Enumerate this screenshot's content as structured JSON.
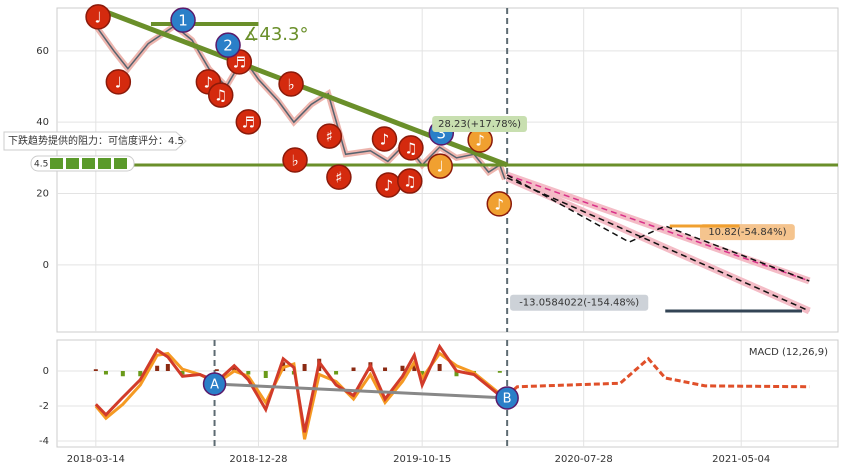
{
  "chart_data": [
    {
      "type": "line",
      "x": [
        "2018-03-14",
        "2018-04-15",
        "2018-05-10",
        "2018-06-15",
        "2018-08-01",
        "2018-09-01",
        "2018-10-01",
        "2018-11-01",
        "2018-12-01",
        "2018-12-28",
        "2019-02-01",
        "2019-03-01",
        "2019-04-01",
        "2019-05-01",
        "2019-06-01",
        "2019-07-15",
        "2019-08-15",
        "2019-09-15",
        "2019-10-15",
        "2019-11-15",
        "2019-12-15",
        "2020-01-15",
        "2020-02-10",
        "2020-03-01",
        "2020-03-10"
      ],
      "values": [
        67,
        60,
        55,
        62,
        67,
        63,
        55,
        50,
        58,
        52,
        46,
        40,
        45,
        48,
        31,
        32,
        29,
        34,
        28,
        33,
        30,
        31,
        26,
        28,
        24
      ],
      "color": "#56636f",
      "xlim": [
        "2018-01-04",
        "2021-10-23"
      ],
      "xticks": [
        "2018-03-14",
        "2018-12-28",
        "2019-10-15",
        "2020-07-28",
        "2021-05-04"
      ],
      "ylim": [
        -18.8,
        72
      ],
      "yticks": [
        0,
        20,
        40,
        60
      ],
      "grid": true,
      "vline": "2020-03-14",
      "trendlines": [
        {
          "color": "#6a8f2a",
          "width": 5,
          "points": [
            {
              "x": "2018-03-14",
              "y": 72
            },
            {
              "x": "2020-03-14",
              "y": 28
            }
          ]
        },
        {
          "color": "#6a8f2a",
          "width": 4,
          "points": [
            {
              "x": "2018-06-20",
              "y": 67.5
            },
            {
              "x": "2018-12-28",
              "y": 67.5
            }
          ]
        },
        {
          "color": "#6a8f2a",
          "width": 3,
          "points": [
            {
              "x": "2018-01-04",
              "y": 28
            },
            {
              "x": "2021-10-23",
              "y": 28
            }
          ]
        },
        {
          "color": "#f4bcc6",
          "width": 7,
          "points": [
            {
              "x": "2020-03-14",
              "y": 25.2
            },
            {
              "x": "2021-09-02",
              "y": -4.5
            }
          ]
        },
        {
          "color": "#f4bcc6",
          "width": 7,
          "points": [
            {
              "x": "2020-03-14",
              "y": 24.4
            },
            {
              "x": "2021-09-02",
              "y": -12.9
            }
          ]
        },
        {
          "color": "#d9308a",
          "width": 1.5,
          "dash": true,
          "points": [
            {
              "x": "2020-03-14",
              "y": 25.2
            },
            {
              "x": "2021-09-02",
              "y": -4.5
            }
          ]
        },
        {
          "color": "#111111",
          "width": 1.5,
          "dash": true,
          "points": [
            {
              "x": "2020-03-14",
              "y": 25.2
            },
            {
              "x": "2020-10-17",
              "y": 6.4
            },
            {
              "x": "2020-12-20",
              "y": 10.9
            },
            {
              "x": "2021-09-02",
              "y": -4.5
            }
          ]
        },
        {
          "color": "#111111",
          "width": 1.5,
          "dash": true,
          "points": [
            {
              "x": "2020-03-14",
              "y": 24.4
            },
            {
              "x": "2021-09-02",
              "y": -12.9
            }
          ]
        }
      ],
      "angle_label": {
        "text": "∡43.3°",
        "x": "2018-12-01",
        "y": 64.4
      },
      "markers": [
        {
          "label": "♩",
          "x": "2018-03-18",
          "y": 69.5,
          "color": "#d42a0e"
        },
        {
          "label": "♩",
          "x": "2018-04-23",
          "y": 51.3,
          "color": "#d42a0e"
        },
        {
          "label": "♪",
          "x": "2018-09-30",
          "y": 51.3,
          "color": "#d42a0e"
        },
        {
          "label": "♫",
          "x": "2018-10-22",
          "y": 47.6,
          "color": "#d42a0e"
        },
        {
          "label": "♬",
          "x": "2018-11-24",
          "y": 56.9,
          "color": "#d42a0e"
        },
        {
          "label": "♬",
          "x": "2018-12-10",
          "y": 40.1,
          "color": "#d42a0e"
        },
        {
          "label": "♭",
          "x": "2019-02-24",
          "y": 50.7,
          "color": "#d42a0e"
        },
        {
          "label": "♭",
          "x": "2019-03-03",
          "y": 29.4,
          "color": "#d42a0e"
        },
        {
          "label": "♯",
          "x": "2019-05-03",
          "y": 36.1,
          "color": "#d42a0e"
        },
        {
          "label": "♯",
          "x": "2019-05-20",
          "y": 24.6,
          "color": "#d42a0e"
        },
        {
          "label": "♪",
          "x": "2019-08-09",
          "y": 35.3,
          "color": "#d42a0e"
        },
        {
          "label": "♪",
          "x": "2019-08-16",
          "y": 22.4,
          "color": "#d42a0e"
        },
        {
          "label": "♫",
          "x": "2019-09-25",
          "y": 32.8,
          "color": "#d42a0e"
        },
        {
          "label": "♫",
          "x": "2019-09-23",
          "y": 23.5,
          "color": "#d42a0e"
        },
        {
          "label": "♩",
          "x": "2019-11-16",
          "y": 27.7,
          "color": "#f0a030"
        },
        {
          "label": "♪",
          "x": "2020-01-26",
          "y": 35.0,
          "color": "#f0a030"
        },
        {
          "label": "♪",
          "x": "2020-02-29",
          "y": 17.1,
          "color": "#f0a030"
        },
        {
          "label": "1",
          "x": "2018-08-16",
          "y": 68.6,
          "color": "#2a7fc8"
        },
        {
          "label": "2",
          "x": "2018-11-04",
          "y": 61.6,
          "color": "#2a7fc8"
        },
        {
          "label": "3",
          "x": "2019-11-18",
          "y": 37.0,
          "color": "#2a7fc8"
        }
      ],
      "annotations": [
        {
          "text": "28.23(+17.78%)",
          "x": "2020-01-25",
          "y": 39.5,
          "color": "#c8dfb0"
        },
        {
          "text": "10.82(-54.84%)",
          "x": "2021-05-15",
          "y": 9.2,
          "color": "#f5c48e"
        },
        {
          "text": "-13.0584022(-154.48%)",
          "x": "2020-07-20",
          "y": -10.6,
          "color": "#cdd2d8"
        }
      ],
      "note": "下跌趋势提供的阻力：可信度评分：4.5",
      "score": 4.5
    },
    {
      "type": "macd",
      "title": "MACD (12,26,9)",
      "x": [
        "2018-03-14",
        "2018-04-01",
        "2018-05-01",
        "2018-06-01",
        "2018-07-01",
        "2018-07-20",
        "2018-08-15",
        "2018-09-15",
        "2018-10-15",
        "2018-11-15",
        "2018-12-10",
        "2019-01-10",
        "2019-02-10",
        "2019-03-01",
        "2019-03-20",
        "2019-04-15",
        "2019-05-15",
        "2019-06-15",
        "2019-07-15",
        "2019-08-10",
        "2019-09-10",
        "2019-10-01",
        "2019-10-15",
        "2019-11-15",
        "2019-12-15",
        "2020-01-15",
        "2020-03-01"
      ],
      "lines": [
        {
          "color": "#f59a23",
          "values": [
            -2.0,
            -2.7,
            -1.9,
            -0.8,
            0.9,
            1.0,
            0.1,
            -0.2,
            -0.7,
            0.0,
            -0.3,
            -1.8,
            0.2,
            0.4,
            -3.9,
            -0.2,
            -0.6,
            -1.6,
            -0.2,
            -1.8,
            -0.6,
            0.5,
            -0.4,
            1.0,
            0.3,
            -0.1,
            -1.3
          ]
        },
        {
          "color": "#d13b2a",
          "values": [
            -1.9,
            -2.5,
            -1.5,
            -0.5,
            1.2,
            0.8,
            -0.3,
            -0.2,
            -0.6,
            0.3,
            -0.5,
            -2.2,
            0.7,
            0.2,
            -3.5,
            0.5,
            -0.8,
            -1.4,
            0.3,
            -1.6,
            -0.3,
            0.9,
            -0.8,
            1.4,
            0.0,
            -0.2,
            -1.4
          ]
        }
      ],
      "forecast": {
        "color": "#e0502a",
        "x": [
          "2020-03-14",
          "2020-04-01",
          "2020-10-01",
          "2020-11-20",
          "2020-12-20",
          "2021-03-01",
          "2021-09-02"
        ],
        "values": [
          -1.4,
          -0.9,
          -0.7,
          0.7,
          -0.4,
          -0.85,
          -0.9
        ]
      },
      "histogram": {
        "values": [
          0.1,
          -0.2,
          -0.3,
          -0.3,
          0.3,
          0.4,
          -0.2,
          0.0,
          0.1,
          0.3,
          -0.2,
          -0.4,
          0.5,
          -0.2,
          0.4,
          0.7,
          -0.2,
          0.2,
          0.5,
          0.2,
          0.3,
          0.4,
          -0.4,
          0.4,
          -0.3,
          -0.1,
          -0.1
        ]
      },
      "pos_color": "#8b2a12",
      "neg_color": "#6a9a1a",
      "xlim": [
        "2018-01-04",
        "2021-10-23"
      ],
      "xticks": [
        "2018-03-14",
        "2018-12-28",
        "2019-10-15",
        "2020-07-28",
        "2021-05-04"
      ],
      "ylim": [
        -4.34,
        1.77
      ],
      "yticks": [
        -4,
        -2,
        0
      ],
      "grid": true,
      "vlines": [
        "2018-10-11",
        "2020-03-14"
      ],
      "signals": [
        {
          "label": "A",
          "x": "2018-10-11",
          "y": -0.74
        },
        {
          "label": "B",
          "x": "2020-03-14",
          "y": -1.54
        }
      ]
    }
  ]
}
